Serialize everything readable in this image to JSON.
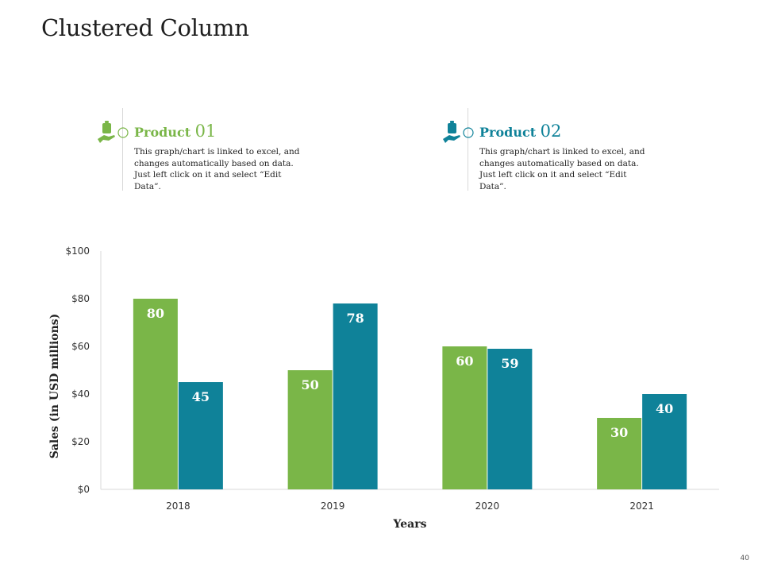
{
  "slide": {
    "title": "Clustered Column",
    "page_number": "40"
  },
  "products": [
    {
      "label": "Product ",
      "number": "01",
      "description": "This graph/chart is linked to excel, and changes automatically based on data. Just left click on it and select “Edit Data”.",
      "color": "#7ab648",
      "icon": "hand-holding-bag-icon"
    },
    {
      "label": "Product ",
      "number": "02",
      "description": "This graph/chart is linked to excel, and changes automatically based on data. Just left click on it and select “Edit Data”.",
      "color": "#0f8299",
      "icon": "hand-holding-bag-icon"
    }
  ],
  "chart_data": {
    "type": "bar",
    "title": "",
    "xlabel": "Years",
    "ylabel": "Sales (in USD millions)",
    "categories": [
      "2018",
      "2019",
      "2020",
      "2021"
    ],
    "series": [
      {
        "name": "Product 01",
        "values": [
          80,
          50,
          60,
          30
        ],
        "color": "#7ab648"
      },
      {
        "name": "Product 02",
        "values": [
          45,
          78,
          59,
          40
        ],
        "color": "#0f8299"
      }
    ],
    "ylim": [
      0,
      100
    ],
    "yticks": [
      0,
      20,
      40,
      60,
      80,
      100
    ],
    "ytick_labels": [
      "$0",
      "$20",
      "$40",
      "$60",
      "$80",
      "$100"
    ],
    "grid": false,
    "legend": "none"
  }
}
